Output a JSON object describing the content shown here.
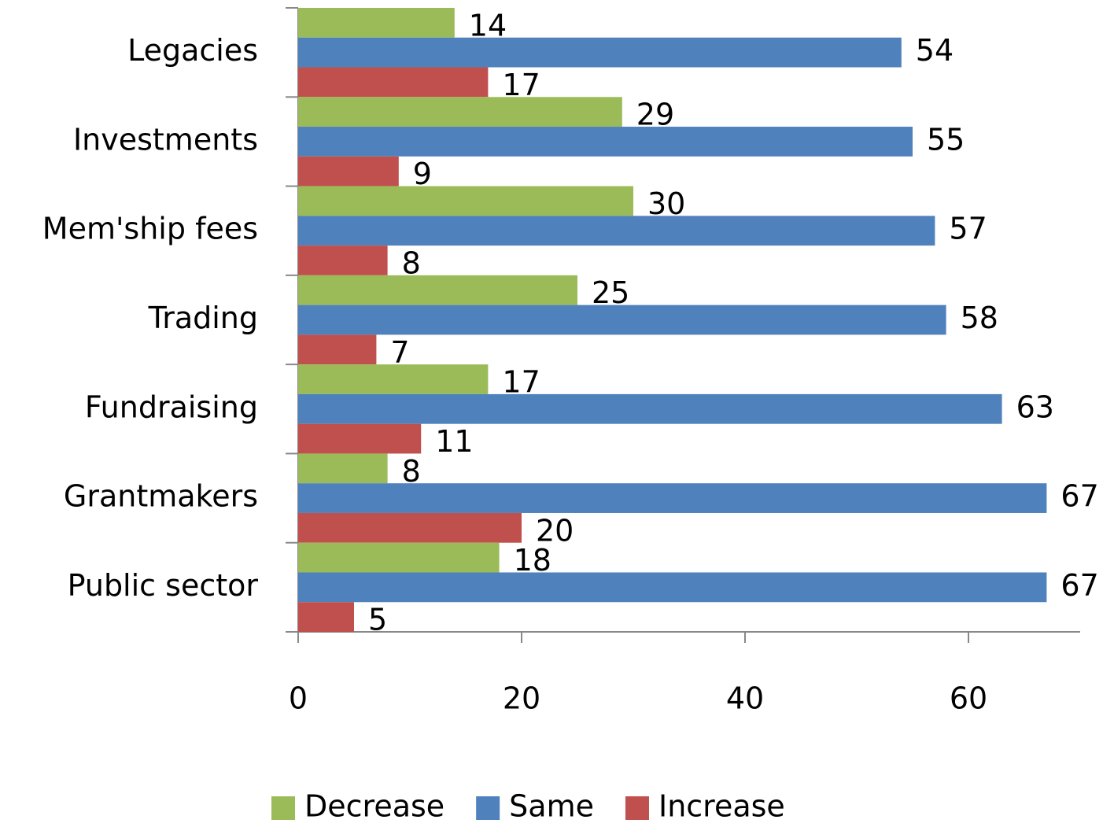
{
  "chart_data": {
    "type": "hbar",
    "categories": [
      "Legacies",
      "Investments",
      "Mem'ship fees",
      "Trading",
      "Fundraising",
      "Grantmakers",
      "Public sector"
    ],
    "series": [
      {
        "name": "Decrease",
        "color": "#9bbb59",
        "values": [
          14,
          29,
          30,
          25,
          17,
          8,
          18
        ]
      },
      {
        "name": "Same",
        "color": "#4f81bd",
        "values": [
          54,
          55,
          57,
          58,
          63,
          67,
          67
        ]
      },
      {
        "name": "Increase",
        "color": "#c0504d",
        "values": [
          17,
          9,
          8,
          7,
          11,
          20,
          5
        ]
      }
    ],
    "xlim": [
      0,
      70
    ],
    "xticks": [
      0,
      20,
      40,
      60
    ],
    "legend": "bottom"
  }
}
